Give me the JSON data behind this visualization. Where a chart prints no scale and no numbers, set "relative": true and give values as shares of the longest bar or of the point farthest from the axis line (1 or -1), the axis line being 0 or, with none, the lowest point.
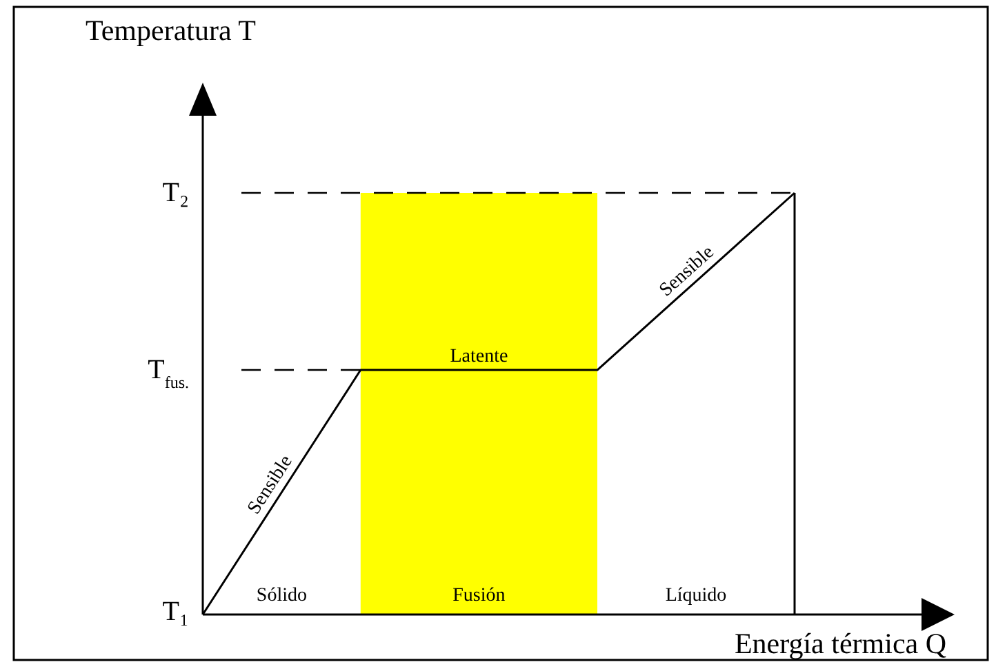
{
  "chart_data": {
    "type": "line",
    "relative": true,
    "xlabel": "Energía térmica Q",
    "categories": [
      null,
      null,
      null,
      null,
      null,
      null,
      null,
      null,
      null,
      null,
      null,
      null,
      null,
      null,
      null,
      null
    ],
    "series": [
      {
        "color": "#000000",
        "values": [
          0,
          0.145,
          0.29,
          0.435,
          0.58,
          0.58,
          0.58,
          0.58,
          0.58,
          0.58,
          0.58,
          0.664,
          0.748,
          0.832,
          0.916,
          1
        ]
      }
    ],
    "ref_lines": [
      {
        "axis": "y",
        "value": 1,
        "label": "T₂",
        "line_style": "dashed",
        "color": "#000000"
      },
      {
        "axis": "y",
        "value": 0.58,
        "label": "T$_{fus.}$",
        "line_style": "dashed",
        "color": "#000000"
      }
    ],
    "annotations": [
      "Temperatura T",
      "T₁",
      "Sólido",
      "Fusión",
      "Líquido",
      "Latente",
      "Sensible",
      "Sensible"
    ],
    "marker": "none",
    "line_style": "solid"
  }
}
